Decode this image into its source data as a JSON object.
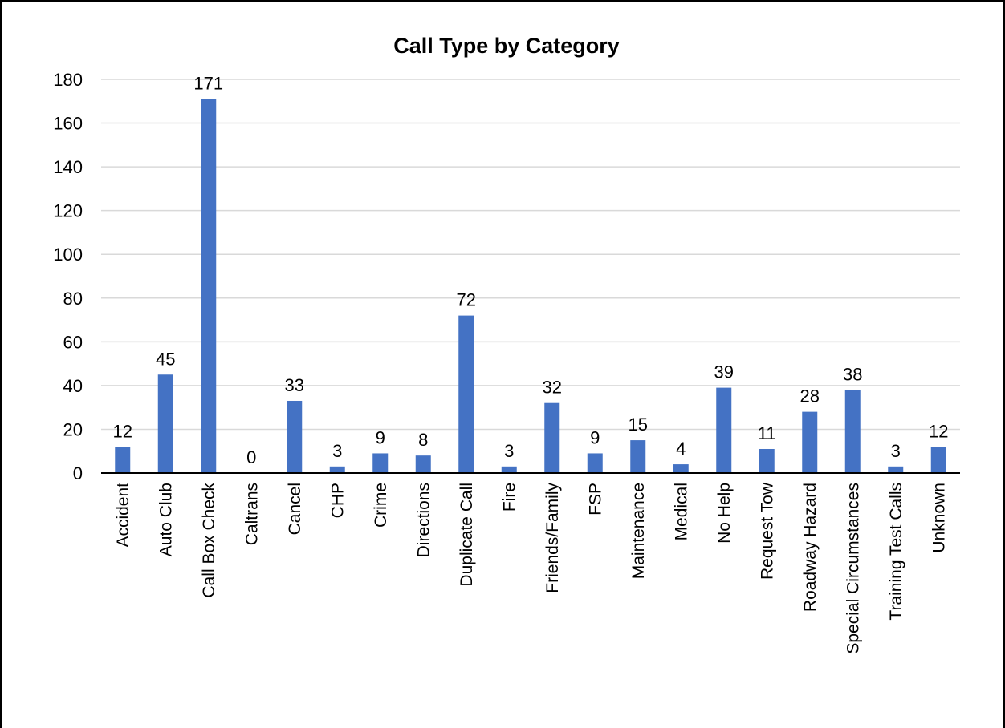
{
  "chart_data": {
    "type": "bar",
    "title": "Call Type by Category",
    "xlabel": "",
    "ylabel": "",
    "ylim": [
      0,
      180
    ],
    "yticks": [
      0,
      20,
      40,
      60,
      80,
      100,
      120,
      140,
      160,
      180
    ],
    "grid": true,
    "legend": "none",
    "bar_color": "#4472C4",
    "categories": [
      "Accident",
      "Auto Club",
      "Call Box Check",
      "Caltrans",
      "Cancel",
      "CHP",
      "Crime",
      "Directions",
      "Duplicate Call",
      "Fire",
      "Friends/Family",
      "FSP",
      "Maintenance",
      "Medical",
      "No Help",
      "Request Tow",
      "Roadway Hazard",
      "Special Circumstances",
      "Training Test Calls",
      "Unknown"
    ],
    "values": [
      12,
      45,
      171,
      0,
      33,
      3,
      9,
      8,
      72,
      3,
      32,
      9,
      15,
      4,
      39,
      11,
      28,
      38,
      3,
      12
    ]
  }
}
